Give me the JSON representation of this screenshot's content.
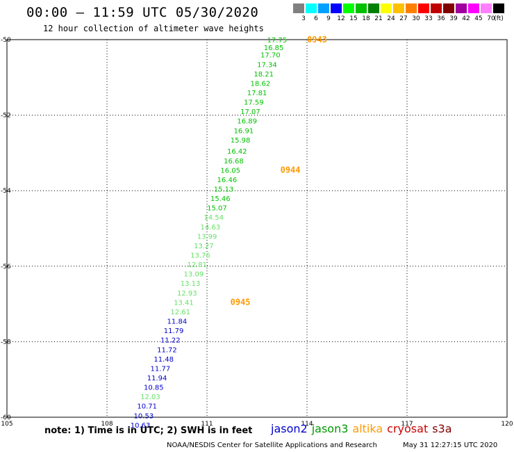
{
  "title": "00:00 – 11:59 UTC 05/30/2020",
  "subtitle": "12 hour collection of altimeter wave heights",
  "color_scale": {
    "unit_label": "(ft)",
    "entries": [
      {
        "label": "3",
        "color": "#808080"
      },
      {
        "label": "6",
        "color": "#00ffff"
      },
      {
        "label": "9",
        "color": "#00a0ff"
      },
      {
        "label": "12",
        "color": "#0000ff"
      },
      {
        "label": "15",
        "color": "#00ff00"
      },
      {
        "label": "18",
        "color": "#00c000"
      },
      {
        "label": "21",
        "color": "#008000"
      },
      {
        "label": "24",
        "color": "#ffff00"
      },
      {
        "label": "27",
        "color": "#ffc000"
      },
      {
        "label": "30",
        "color": "#ff8000"
      },
      {
        "label": "33",
        "color": "#ff0000"
      },
      {
        "label": "36",
        "color": "#c00000"
      },
      {
        "label": "39",
        "color": "#800000"
      },
      {
        "label": "42",
        "color": "#a000a0"
      },
      {
        "label": "45",
        "color": "#ff00ff"
      },
      {
        "label": "70",
        "color": "#ff80ff"
      },
      {
        "label": "",
        "color": "#000000"
      }
    ]
  },
  "map": {
    "lon_ticks": [
      "105",
      "108",
      "111",
      "114",
      "117",
      "120"
    ],
    "lat_ticks": [
      "-50",
      "-52",
      "-54",
      "-56",
      "-58",
      "-60"
    ],
    "lon_range": [
      105,
      120
    ],
    "lat_range": [
      -60,
      -50
    ]
  },
  "chart_data": {
    "type": "scatter",
    "observations": [
      {
        "lon": 113.4,
        "lat": -50.0,
        "value": "17.75",
        "color": "#00c000"
      },
      {
        "lon": 113.3,
        "lat": -50.2,
        "value": "16.85",
        "color": "#00c000"
      },
      {
        "lon": 113.2,
        "lat": -50.4,
        "value": "17.70",
        "color": "#00c000"
      },
      {
        "lon": 113.1,
        "lat": -50.65,
        "value": "17.34",
        "color": "#00c000"
      },
      {
        "lon": 113.0,
        "lat": -50.9,
        "value": "18.21",
        "color": "#00c000"
      },
      {
        "lon": 112.9,
        "lat": -51.15,
        "value": "18.62",
        "color": "#00c000"
      },
      {
        "lon": 112.8,
        "lat": -51.4,
        "value": "17.81",
        "color": "#00c000"
      },
      {
        "lon": 112.7,
        "lat": -51.65,
        "value": "17.59",
        "color": "#00c000"
      },
      {
        "lon": 112.6,
        "lat": -51.9,
        "value": "17.07",
        "color": "#00c000"
      },
      {
        "lon": 112.5,
        "lat": -52.15,
        "value": "16.89",
        "color": "#00c000"
      },
      {
        "lon": 112.4,
        "lat": -52.4,
        "value": "16.91",
        "color": "#00c000"
      },
      {
        "lon": 112.3,
        "lat": -52.65,
        "value": "15.98",
        "color": "#00c000"
      },
      {
        "lon": 112.2,
        "lat": -52.95,
        "value": "16.42",
        "color": "#00c000"
      },
      {
        "lon": 112.1,
        "lat": -53.2,
        "value": "16.68",
        "color": "#00c000"
      },
      {
        "lon": 112.0,
        "lat": -53.45,
        "value": "16.05",
        "color": "#00c000"
      },
      {
        "lon": 111.9,
        "lat": -53.7,
        "value": "16.46",
        "color": "#00c000"
      },
      {
        "lon": 111.8,
        "lat": -53.95,
        "value": "15.13",
        "color": "#00c000"
      },
      {
        "lon": 111.7,
        "lat": -54.2,
        "value": "15.46",
        "color": "#00c000"
      },
      {
        "lon": 111.6,
        "lat": -54.45,
        "value": "15.07",
        "color": "#00c000"
      },
      {
        "lon": 111.5,
        "lat": -54.7,
        "value": "14.54",
        "color": "#66e066"
      },
      {
        "lon": 111.4,
        "lat": -54.95,
        "value": "14.63",
        "color": "#66e066"
      },
      {
        "lon": 111.3,
        "lat": -55.2,
        "value": "13.99",
        "color": "#66e066"
      },
      {
        "lon": 111.2,
        "lat": -55.45,
        "value": "13.27",
        "color": "#66e066"
      },
      {
        "lon": 111.1,
        "lat": -55.7,
        "value": "13.76",
        "color": "#66e066"
      },
      {
        "lon": 111.0,
        "lat": -55.95,
        "value": "12.81",
        "color": "#66e066"
      },
      {
        "lon": 110.9,
        "lat": -56.2,
        "value": "13.09",
        "color": "#66e066"
      },
      {
        "lon": 110.8,
        "lat": -56.45,
        "value": "13.13",
        "color": "#66e066"
      },
      {
        "lon": 110.7,
        "lat": -56.7,
        "value": "12.93",
        "color": "#66e066"
      },
      {
        "lon": 110.6,
        "lat": -56.95,
        "value": "13.41",
        "color": "#66e066"
      },
      {
        "lon": 110.5,
        "lat": -57.2,
        "value": "12.61",
        "color": "#66e066"
      },
      {
        "lon": 110.4,
        "lat": -57.45,
        "value": "11.84",
        "color": "#0000cc"
      },
      {
        "lon": 110.3,
        "lat": -57.7,
        "value": "11.79",
        "color": "#0000cc"
      },
      {
        "lon": 110.2,
        "lat": -57.95,
        "value": "11.22",
        "color": "#0000cc"
      },
      {
        "lon": 110.1,
        "lat": -58.2,
        "value": "11.72",
        "color": "#0000cc"
      },
      {
        "lon": 110.0,
        "lat": -58.45,
        "value": "11.48",
        "color": "#0000cc"
      },
      {
        "lon": 109.9,
        "lat": -58.7,
        "value": "11.77",
        "color": "#0000cc"
      },
      {
        "lon": 109.8,
        "lat": -58.95,
        "value": "11.94",
        "color": "#0000cc"
      },
      {
        "lon": 109.7,
        "lat": -59.2,
        "value": "10.85",
        "color": "#0000cc"
      },
      {
        "lon": 109.6,
        "lat": -59.45,
        "value": "12.03",
        "color": "#66e066"
      },
      {
        "lon": 109.5,
        "lat": -59.7,
        "value": "10.71",
        "color": "#0000cc"
      },
      {
        "lon": 109.4,
        "lat": -59.95,
        "value": "10.53",
        "color": "#0000cc"
      },
      {
        "lon": 109.3,
        "lat": -60.2,
        "value": "10.63",
        "color": "#0000cc"
      }
    ],
    "time_labels": [
      {
        "lon": 114.0,
        "lat": -50.0,
        "text": "0943",
        "color": "#ff9900"
      },
      {
        "lon": 113.2,
        "lat": -53.45,
        "text": "0944",
        "color": "#ff9900"
      },
      {
        "lon": 111.7,
        "lat": -56.95,
        "text": "0945",
        "color": "#ff9900"
      }
    ]
  },
  "note": "note:  1) Time is in UTC;  2) SWH is in feet",
  "legend": [
    {
      "label": "jason2",
      "color": "#0000cc"
    },
    {
      "label": "jason3",
      "color": "#009900"
    },
    {
      "label": "altika",
      "color": "#ff9900"
    },
    {
      "label": "cryosat",
      "color": "#cc0000"
    },
    {
      "label": "s3a",
      "color": "#800000"
    }
  ],
  "credit": "NOAA/NESDIS Center for Satellite Applications and Research",
  "generated": "May 31 12:27:15 UTC 2020"
}
